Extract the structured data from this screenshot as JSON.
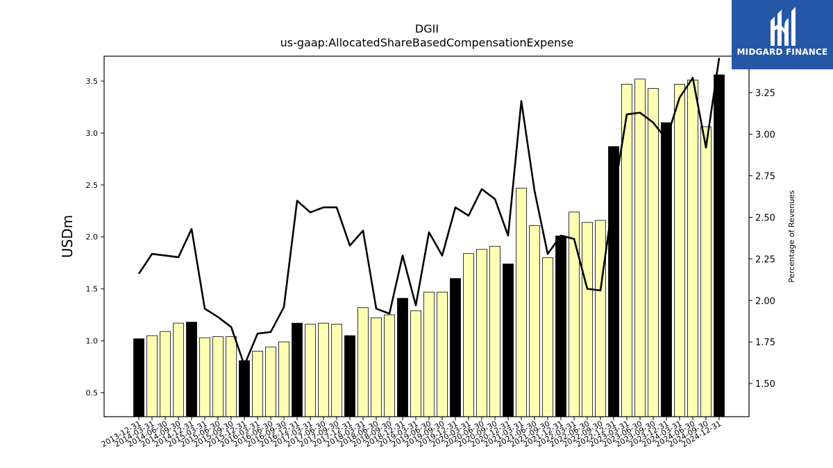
{
  "title": "DGII",
  "subtitle": "us-gaap:AllocatedShareBasedCompensationExpense",
  "logo": {
    "text": "MIDGARD FINANCE",
    "color": "#2557a7"
  },
  "colors": {
    "q4_bar": "#000000",
    "bar": "#ffffb4",
    "line": "#000000"
  },
  "chart_data": {
    "type": "bar",
    "title": "DGII",
    "subtitle": "us-gaap:AllocatedShareBasedCompensationExpense",
    "ylabel": "USDm",
    "y2label": "Percentage of Revenues",
    "ylim": [
      0.27,
      3.74
    ],
    "y2lim": [
      1.3,
      3.47
    ],
    "yticks": [
      "0.5",
      "1.0",
      "1.5",
      "2.0",
      "2.5",
      "3.0",
      "3.5"
    ],
    "y2ticks": [
      "1.50",
      "1.75",
      "2.00",
      "2.25",
      "2.50",
      "2.75",
      "3.00",
      "3.25"
    ],
    "categories": [
      "2013-12-31",
      "2014-03-31",
      "2014-06-30",
      "2014-09-30",
      "2014-12-31",
      "2015-03-31",
      "2015-06-30",
      "2015-09-30",
      "2015-12-31",
      "2016-03-31",
      "2016-06-30",
      "2016-09-30",
      "2016-12-31",
      "2017-03-31",
      "2017-06-30",
      "2017-09-30",
      "2017-12-31",
      "2018-03-31",
      "2018-06-30",
      "2018-09-30",
      "2018-12-31",
      "2019-03-31",
      "2019-06-30",
      "2019-09-30",
      "2019-12-31",
      "2020-03-31",
      "2020-06-30",
      "2020-09-30",
      "2020-12-31",
      "2021-03-31",
      "2021-06-30",
      "2021-09-30",
      "2021-12-31",
      "2022-03-31",
      "2022-06-30",
      "2022-09-30",
      "2022-12-31",
      "2023-03-31",
      "2023-06-30",
      "2023-09-30",
      "2023-12-31",
      "2024-03-31",
      "2024-06-30",
      "2024-09-30",
      "2024-12-31"
    ],
    "series": [
      {
        "values": [
          1.02,
          1.05,
          1.09,
          1.17,
          1.18,
          1.03,
          1.04,
          1.04,
          0.81,
          0.9,
          0.94,
          0.99,
          1.17,
          1.16,
          1.17,
          1.16,
          1.05,
          1.32,
          1.22,
          1.25,
          1.41,
          1.29,
          1.47,
          1.47,
          1.6,
          1.84,
          1.88,
          1.91,
          1.74,
          2.47,
          2.11,
          1.8,
          2.01,
          2.24,
          2.14,
          2.16,
          2.87,
          3.47,
          3.52,
          3.43,
          3.1,
          3.47,
          3.51,
          3.06,
          3.56
        ],
        "q4_highlight": [
          true,
          false,
          false,
          false,
          true,
          false,
          false,
          false,
          true,
          false,
          false,
          false,
          true,
          false,
          false,
          false,
          true,
          false,
          false,
          false,
          true,
          false,
          false,
          false,
          true,
          false,
          false,
          false,
          true,
          false,
          false,
          false,
          true,
          false,
          false,
          false,
          true,
          false,
          false,
          false,
          true,
          false,
          false,
          false,
          true
        ]
      },
      {
        "axis": "right",
        "type": "line",
        "values": [
          2.16,
          2.28,
          2.27,
          2.26,
          2.43,
          1.95,
          1.9,
          1.84,
          1.61,
          1.8,
          1.81,
          1.96,
          2.6,
          2.53,
          2.56,
          2.56,
          2.33,
          2.42,
          1.95,
          1.92,
          2.27,
          1.97,
          2.41,
          2.27,
          2.56,
          2.51,
          2.67,
          2.61,
          2.39,
          3.2,
          2.66,
          2.28,
          2.39,
          2.37,
          2.07,
          2.06,
          2.63,
          3.12,
          3.13,
          3.07,
          2.97,
          3.22,
          3.34,
          2.92,
          3.46
        ]
      }
    ]
  }
}
